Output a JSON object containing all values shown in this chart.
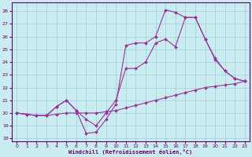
{
  "xlabel": "Windchill (Refroidissement éolien,°C)",
  "xlim": [
    -0.5,
    23.5
  ],
  "ylim": [
    17.8,
    28.7
  ],
  "yticks": [
    18,
    19,
    20,
    21,
    22,
    23,
    24,
    25,
    26,
    27,
    28
  ],
  "xticks": [
    0,
    1,
    2,
    3,
    4,
    5,
    6,
    7,
    8,
    9,
    10,
    11,
    12,
    13,
    14,
    15,
    16,
    17,
    18,
    19,
    20,
    21,
    22,
    23
  ],
  "bg": "#c8ecf0",
  "grid_color": "#a0ccd8",
  "lc": "#993399",
  "lw": 0.8,
  "ms": 2.0,
  "series": [
    {
      "x": [
        0,
        1,
        2,
        3,
        4,
        5,
        6,
        7,
        8,
        9,
        10,
        11,
        12,
        13,
        14,
        15,
        16,
        17,
        18,
        19,
        20,
        21,
        22,
        23
      ],
      "y": [
        20,
        19.9,
        19.8,
        19.8,
        19.9,
        20.0,
        20.0,
        20.0,
        20.0,
        20.1,
        20.2,
        20.4,
        20.6,
        20.8,
        21.0,
        21.2,
        21.4,
        21.6,
        21.8,
        22.0,
        22.1,
        22.2,
        22.3,
        22.5
      ]
    },
    {
      "x": [
        0,
        1,
        2,
        3,
        4,
        5,
        6,
        7,
        8,
        9,
        10,
        11,
        12,
        13,
        14,
        15,
        16,
        17,
        18,
        19,
        20,
        21,
        22,
        23
      ],
      "y": [
        20,
        19.9,
        19.8,
        19.8,
        20.5,
        21.0,
        20.2,
        19.5,
        19.0,
        20.0,
        21.0,
        23.5,
        23.5,
        24.0,
        25.5,
        25.8,
        25.2,
        27.5,
        27.5,
        25.8,
        24.2,
        23.3,
        22.7,
        22.5
      ]
    },
    {
      "x": [
        0,
        1,
        2,
        3,
        4,
        5,
        6,
        7,
        8,
        9,
        10,
        11,
        12,
        13,
        14,
        15,
        16,
        17,
        18,
        19,
        20,
        21,
        22,
        23
      ],
      "y": [
        20,
        19.9,
        19.8,
        19.8,
        20.5,
        21.0,
        20.2,
        18.4,
        18.5,
        19.5,
        20.7,
        25.3,
        25.5,
        25.5,
        26.0,
        28.1,
        27.9,
        27.5,
        27.5,
        25.8,
        24.3,
        23.3,
        22.7,
        22.5
      ]
    }
  ]
}
